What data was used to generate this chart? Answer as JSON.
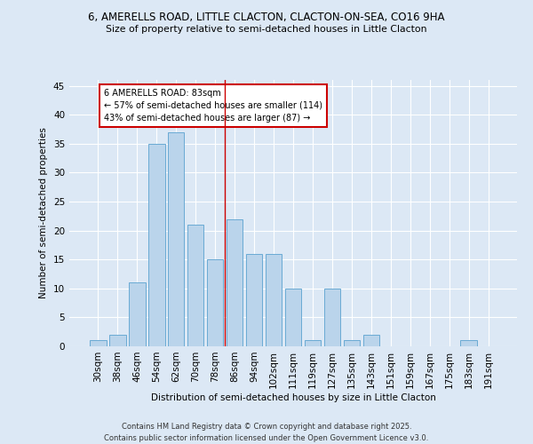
{
  "title_line1": "6, AMERELLS ROAD, LITTLE CLACTON, CLACTON-ON-SEA, CO16 9HA",
  "title_line2": "Size of property relative to semi-detached houses in Little Clacton",
  "xlabel": "Distribution of semi-detached houses by size in Little Clacton",
  "ylabel": "Number of semi-detached properties",
  "categories": [
    "30sqm",
    "38sqm",
    "46sqm",
    "54sqm",
    "62sqm",
    "70sqm",
    "78sqm",
    "86sqm",
    "94sqm",
    "102sqm",
    "111sqm",
    "119sqm",
    "127sqm",
    "135sqm",
    "143sqm",
    "151sqm",
    "159sqm",
    "167sqm",
    "175sqm",
    "183sqm",
    "191sqm"
  ],
  "values": [
    1,
    2,
    11,
    35,
    37,
    21,
    15,
    22,
    16,
    16,
    10,
    1,
    10,
    1,
    2,
    0,
    0,
    0,
    0,
    1,
    0
  ],
  "bar_color": "#bad4eb",
  "bar_edge_color": "#6aaad4",
  "vline_color": "#cc0000",
  "vline_x": 6.5,
  "annotation_text": "6 AMERELLS ROAD: 83sqm\n← 57% of semi-detached houses are smaller (114)\n43% of semi-detached houses are larger (87) →",
  "annotation_box_color": "#ffffff",
  "annotation_box_edge_color": "#cc0000",
  "background_color": "#dce8f5",
  "grid_color": "#ffffff",
  "ylim": [
    0,
    46
  ],
  "yticks": [
    0,
    5,
    10,
    15,
    20,
    25,
    30,
    35,
    40,
    45
  ],
  "footer_line1": "Contains HM Land Registry data © Crown copyright and database right 2025.",
  "footer_line2": "Contains public sector information licensed under the Open Government Licence v3.0."
}
